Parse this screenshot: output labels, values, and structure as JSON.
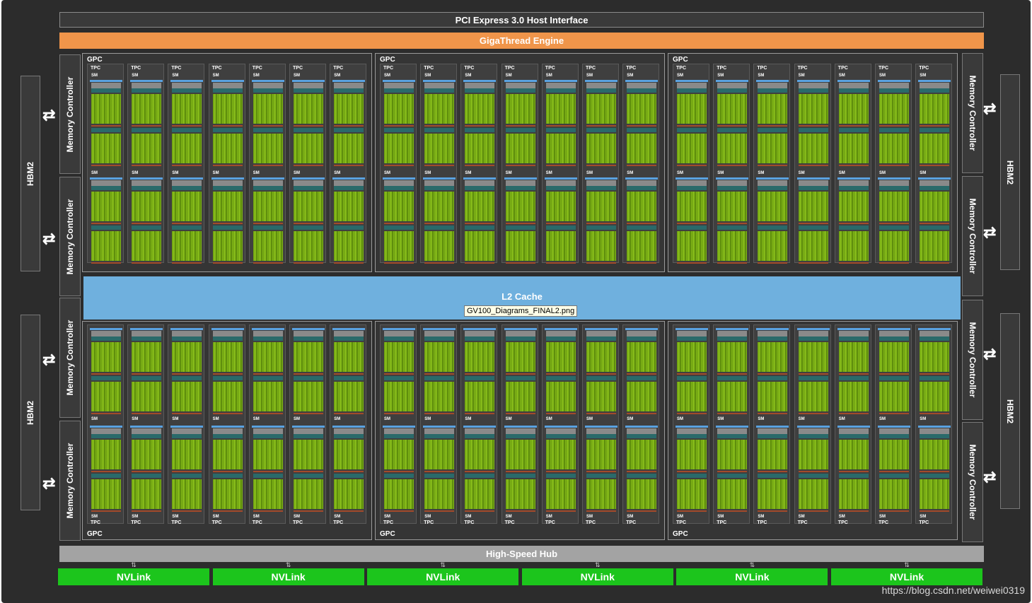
{
  "pcie_label": "PCI Express 3.0 Host Interface",
  "giga_label": "GigaThread Engine",
  "l2_label": "L2 Cache",
  "hub_label": "High-Speed Hub",
  "nvlink_label": "NVLink",
  "hbm_label": "HBM2",
  "mc_label": "Memory Controller",
  "gpc_label": "GPC",
  "tpc_label": "TPC",
  "sm_label": "SM",
  "tooltip": "GV100_Diagrams_FINAL2.png",
  "watermark": "https://blog.csdn.net/weiwei0319",
  "nvlink_count": 6,
  "gpc_count": 6,
  "tpcs_per_gpc": 7,
  "sms_per_tpc": 2,
  "colors": {
    "background": "#2c2c2c",
    "giga": "#f0954a",
    "l2": "#6fb0de",
    "hub": "#a3a3a3",
    "nvlink": "#1cc51c",
    "cores": "#8ec41c"
  }
}
